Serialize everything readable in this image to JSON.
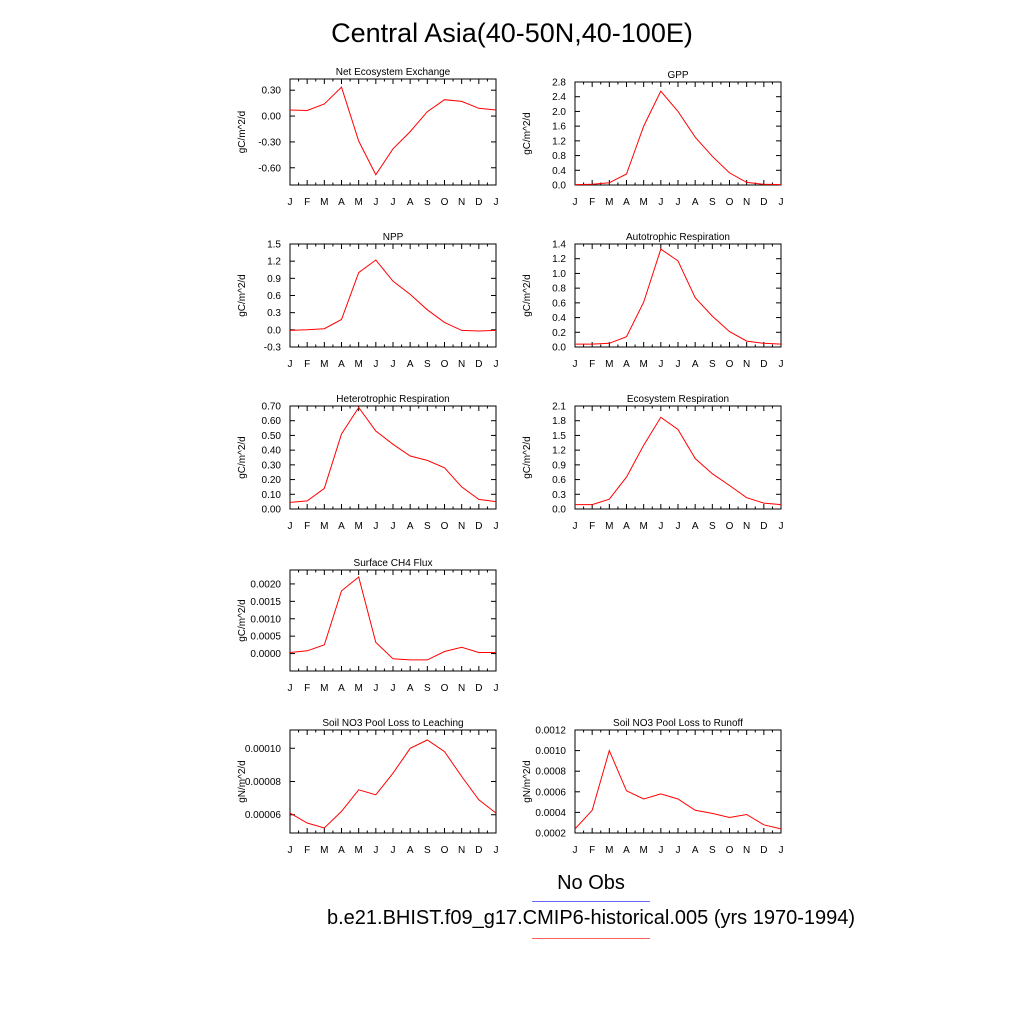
{
  "title": "Central Asia(40-50N,40-100E)",
  "colors": {
    "model": "#ff0000",
    "obs": "#0000ff",
    "axis": "#000000"
  },
  "legend": {
    "obs_label": "No Obs",
    "model_label": "b.e21.BHIST.f09_g17.CMIP6-historical.005 (yrs 1970-1994)"
  },
  "chart_data": [
    {
      "type": "line",
      "title": "Net Ecosystem Exchange",
      "ylabel": "gC/m^2/d",
      "x": [
        "J",
        "F",
        "M",
        "A",
        "M",
        "J",
        "J",
        "A",
        "S",
        "O",
        "N",
        "D",
        "J"
      ],
      "yticks": [
        "0.30",
        "0.00",
        "-0.30",
        "-0.60"
      ],
      "ylim": [
        -0.8,
        0.43
      ],
      "series": [
        {
          "values": [
            0.07,
            0.065,
            0.14,
            0.335,
            -0.29,
            -0.68,
            -0.38,
            -0.18,
            0.05,
            0.19,
            0.17,
            0.09,
            0.07
          ]
        }
      ]
    },
    {
      "type": "line",
      "title": "GPP",
      "ylabel": "gC/m^2/d",
      "x": [
        "J",
        "F",
        "M",
        "A",
        "M",
        "J",
        "J",
        "A",
        "S",
        "O",
        "N",
        "D",
        "J"
      ],
      "yticks": [
        "2.8",
        "2.4",
        "2.0",
        "1.6",
        "1.2",
        "0.8",
        "0.4",
        "0.0"
      ],
      "ylim": [
        0,
        2.8
      ],
      "series": [
        {
          "values": [
            0.01,
            0.02,
            0.06,
            0.3,
            1.6,
            2.55,
            2.0,
            1.3,
            0.78,
            0.33,
            0.07,
            0.02,
            0.01
          ]
        }
      ]
    },
    {
      "type": "line",
      "title": "NPP",
      "ylabel": "gC/m^2/d",
      "x": [
        "J",
        "F",
        "M",
        "A",
        "M",
        "J",
        "J",
        "A",
        "S",
        "O",
        "N",
        "D",
        "J"
      ],
      "yticks": [
        "1.5",
        "1.2",
        "0.9",
        "0.6",
        "0.3",
        "0.0",
        "-0.3"
      ],
      "ylim": [
        -0.3,
        1.5
      ],
      "series": [
        {
          "values": [
            -0.01,
            0.0,
            0.02,
            0.18,
            1.0,
            1.22,
            0.85,
            0.62,
            0.35,
            0.13,
            -0.01,
            -0.02,
            -0.01
          ]
        }
      ]
    },
    {
      "type": "line",
      "title": "Autotrophic Respiration",
      "ylabel": "gC/m^2/d",
      "x": [
        "J",
        "F",
        "M",
        "A",
        "M",
        "J",
        "J",
        "A",
        "S",
        "O",
        "N",
        "D",
        "J"
      ],
      "yticks": [
        "1.4",
        "1.2",
        "1.0",
        "0.8",
        "0.6",
        "0.4",
        "0.2",
        "0.0"
      ],
      "ylim": [
        0,
        1.4
      ],
      "series": [
        {
          "values": [
            0.04,
            0.04,
            0.05,
            0.14,
            0.61,
            1.33,
            1.17,
            0.67,
            0.42,
            0.21,
            0.08,
            0.05,
            0.04
          ]
        }
      ]
    },
    {
      "type": "line",
      "title": "Heterotrophic Respiration",
      "ylabel": "gC/m^2/d",
      "x": [
        "J",
        "F",
        "M",
        "A",
        "M",
        "J",
        "J",
        "A",
        "S",
        "O",
        "N",
        "D",
        "J"
      ],
      "yticks": [
        "0.70",
        "0.60",
        "0.50",
        "0.40",
        "0.30",
        "0.20",
        "0.10",
        "0.00"
      ],
      "ylim": [
        0,
        0.7
      ],
      "series": [
        {
          "values": [
            0.045,
            0.055,
            0.14,
            0.51,
            0.69,
            0.53,
            0.44,
            0.36,
            0.33,
            0.28,
            0.15,
            0.065,
            0.05
          ]
        }
      ]
    },
    {
      "type": "line",
      "title": "Ecosystem Respiration",
      "ylabel": "gC/m^2/d",
      "x": [
        "J",
        "F",
        "M",
        "A",
        "M",
        "J",
        "J",
        "A",
        "S",
        "O",
        "N",
        "D",
        "J"
      ],
      "yticks": [
        "2.1",
        "1.8",
        "1.5",
        "1.2",
        "0.9",
        "0.6",
        "0.3",
        "0.0"
      ],
      "ylim": [
        0,
        2.1
      ],
      "series": [
        {
          "values": [
            0.09,
            0.09,
            0.2,
            0.65,
            1.3,
            1.87,
            1.62,
            1.03,
            0.72,
            0.48,
            0.23,
            0.12,
            0.09
          ]
        }
      ]
    },
    {
      "type": "line",
      "title": "Surface CH4 Flux",
      "ylabel": "gC/m^2/d",
      "x": [
        "J",
        "F",
        "M",
        "A",
        "M",
        "J",
        "J",
        "A",
        "S",
        "O",
        "N",
        "D",
        "J"
      ],
      "yticks": [
        "0.0020",
        "0.0015",
        "0.0010",
        "0.0005",
        "0.0000"
      ],
      "ylim": [
        -0.0005,
        0.0024
      ],
      "series": [
        {
          "values": [
            3e-05,
            8e-05,
            0.00025,
            0.0018,
            0.0022,
            0.00032,
            -0.00015,
            -0.00018,
            -0.00018,
            6e-05,
            0.00018,
            3e-05,
            3e-05
          ]
        }
      ]
    },
    {
      "type": "line",
      "title": "Soil NO3 Pool Loss to Leaching",
      "ylabel": "gN/m^2/d",
      "x": [
        "J",
        "F",
        "M",
        "A",
        "M",
        "J",
        "J",
        "A",
        "S",
        "O",
        "N",
        "D",
        "J"
      ],
      "yticks": [
        "0.00010",
        "0.00008",
        "0.00006"
      ],
      "ylim": [
        4.9e-05,
        0.000111
      ],
      "series": [
        {
          "values": [
            6.1e-05,
            5.5e-05,
            5.2e-05,
            6.2e-05,
            7.5e-05,
            7.2e-05,
            8.5e-05,
            0.0001,
            0.000105,
            9.8e-05,
            8.3e-05,
            6.9e-05,
            6.1e-05
          ]
        }
      ]
    },
    {
      "type": "line",
      "title": "Soil NO3 Pool Loss to Runoff",
      "ylabel": "gN/m^2/d",
      "x": [
        "J",
        "F",
        "M",
        "A",
        "M",
        "J",
        "J",
        "A",
        "S",
        "O",
        "N",
        "D",
        "J"
      ],
      "yticks": [
        "0.0012",
        "0.0010",
        "0.0008",
        "0.0006",
        "0.0004",
        "0.0002"
      ],
      "ylim": [
        0.0002,
        0.0012
      ],
      "series": [
        {
          "values": [
            0.00024,
            0.00042,
            0.001,
            0.00061,
            0.00053,
            0.00058,
            0.00053,
            0.00042,
            0.00039,
            0.00035,
            0.00038,
            0.00028,
            0.00024
          ]
        }
      ]
    }
  ]
}
